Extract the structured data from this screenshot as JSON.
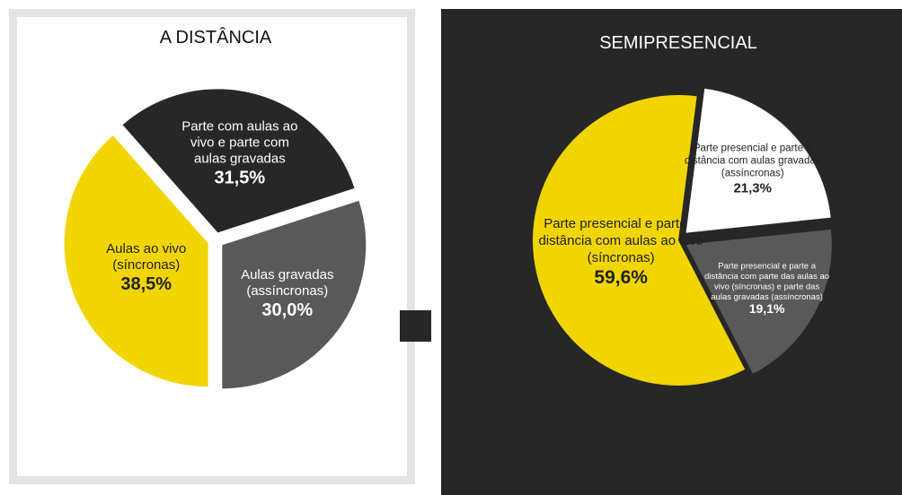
{
  "chart_data": [
    {
      "type": "pie",
      "title": "A DISTÂNCIA",
      "slices": [
        {
          "label": "Aulas gravadas (assíncronas)",
          "label_lines": [
            "Aulas gravadas",
            "(assíncronas)"
          ],
          "value": 30.0,
          "value_label": "30,0%",
          "color": "#595959",
          "text_color": "#ffffff"
        },
        {
          "label": "Aulas ao vivo (síncronas)",
          "label_lines": [
            "Aulas ao vivo",
            "(síncronas)"
          ],
          "value": 38.5,
          "value_label": "38,5%",
          "color": "#f0d500",
          "text_color": "#222222"
        },
        {
          "label": "Parte com aulas ao vivo e parte com aulas gravadas",
          "label_lines": [
            "Parte com aulas ao",
            "vivo e parte com",
            "aulas gravadas"
          ],
          "value": 31.5,
          "value_label": "31,5%",
          "color": "#272727",
          "text_color": "#ffffff"
        }
      ]
    },
    {
      "type": "pie",
      "title": "SEMIPRESENCIAL",
      "slices": [
        {
          "label": "Parte presencial e parte a distância com parte das aulas ao vivo (síncronas) e parte das aulas gravadas (assíncronas)",
          "label_lines": [
            "Parte presencial e parte a",
            "distância com parte das aulas ao",
            "vivo (síncronas) e parte das",
            "aulas gravadas (assíncronas)"
          ],
          "value": 19.1,
          "value_label": "19,1%",
          "color": "#595959",
          "text_color": "#ffffff"
        },
        {
          "label": "Parte presencial e parte a distância com aulas ao vivo (síncronas)",
          "label_lines": [
            "Parte presencial e parte a",
            "distância com aulas ao vivo",
            "(síncronas)"
          ],
          "value": 59.6,
          "value_label": "59,6%",
          "color": "#f0d500",
          "text_color": "#222222"
        },
        {
          "label": "Parte presencial e parte a distância com aulas gravadas (assíncronas)",
          "label_lines": [
            "Parte presencial e parte a",
            "distância com aulas gravadas",
            "(assíncronas)"
          ],
          "value": 21.3,
          "value_label": "21,3%",
          "color": "#ffffff",
          "text_color": "#222222"
        }
      ]
    }
  ]
}
